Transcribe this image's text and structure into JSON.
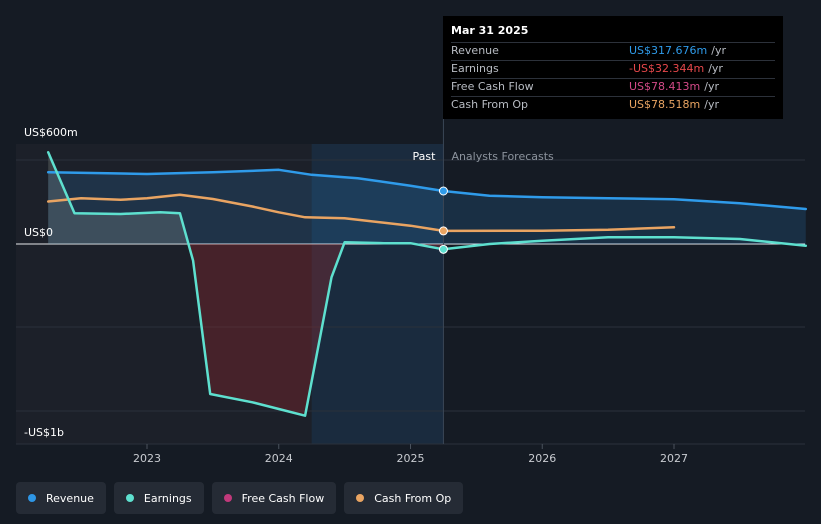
{
  "tooltip": {
    "date": "Mar 31 2025",
    "rows": [
      {
        "name": "Revenue",
        "value": "US$317.676m",
        "unit": "/yr",
        "color": "#2f9bea"
      },
      {
        "name": "Earnings",
        "value": "-US$32.344m",
        "unit": "/yr",
        "color": "#e8484b"
      },
      {
        "name": "Free Cash Flow",
        "value": "US$78.413m",
        "unit": "/yr",
        "color": "#d34a88"
      },
      {
        "name": "Cash From Op",
        "value": "US$78.518m",
        "unit": "/yr",
        "color": "#e9a462"
      }
    ]
  },
  "legend": [
    {
      "label": "Revenue",
      "color": "#2e96e6"
    },
    {
      "label": "Earnings",
      "color": "#5ee0cf"
    },
    {
      "label": "Free Cash Flow",
      "color": "#c1397b"
    },
    {
      "label": "Cash From Op",
      "color": "#e9a462"
    }
  ],
  "chart_data": {
    "type": "line",
    "y_axis_labels": {
      "top": "US$600m",
      "zero": "US$0",
      "bottom": "-US$1b"
    },
    "ylim": [
      -1000,
      600
    ],
    "x_ticks": [
      {
        "label": "2023",
        "x": 2023.0
      },
      {
        "label": "2024",
        "x": 2024.0
      },
      {
        "label": "2025",
        "x": 2025.0
      },
      {
        "label": "2026",
        "x": 2026.0
      },
      {
        "label": "2027",
        "x": 2027.0
      }
    ],
    "xlim": [
      2022.0,
      2028.0
    ],
    "divider_x": 2025.25,
    "past_label": "Past",
    "forecast_label": "Analysts Forecasts",
    "series": [
      {
        "name": "Revenue",
        "color": "#2f9bea",
        "fill": true,
        "points": [
          [
            2022.25,
            430
          ],
          [
            2022.7,
            425
          ],
          [
            2023.0,
            420
          ],
          [
            2023.5,
            430
          ],
          [
            2024.0,
            445
          ],
          [
            2024.25,
            415
          ],
          [
            2024.6,
            395
          ],
          [
            2025.0,
            350
          ],
          [
            2025.25,
            318
          ],
          [
            2025.6,
            290
          ],
          [
            2026.0,
            280
          ],
          [
            2026.5,
            275
          ],
          [
            2027.0,
            268
          ],
          [
            2027.5,
            245
          ],
          [
            2028.0,
            210
          ]
        ],
        "marker_x": 2025.25
      },
      {
        "name": "Cash From Op",
        "color": "#e9a462",
        "fill": false,
        "points": [
          [
            2022.25,
            255
          ],
          [
            2022.5,
            275
          ],
          [
            2022.8,
            265
          ],
          [
            2023.0,
            275
          ],
          [
            2023.25,
            295
          ],
          [
            2023.5,
            270
          ],
          [
            2023.8,
            225
          ],
          [
            2024.0,
            190
          ],
          [
            2024.2,
            160
          ],
          [
            2024.5,
            155
          ],
          [
            2025.0,
            110
          ],
          [
            2025.25,
            78.5
          ],
          [
            2026.0,
            80
          ],
          [
            2026.5,
            85
          ],
          [
            2027.0,
            100
          ]
        ],
        "marker_x": 2025.25
      },
      {
        "name": "Earnings",
        "color": "#5ee0cf",
        "fill": true,
        "points": [
          [
            2022.25,
            550
          ],
          [
            2022.45,
            185
          ],
          [
            2022.8,
            180
          ],
          [
            2023.1,
            190
          ],
          [
            2023.25,
            185
          ],
          [
            2023.35,
            -100
          ],
          [
            2023.48,
            -900
          ],
          [
            2023.8,
            -950
          ],
          [
            2024.0,
            -990
          ],
          [
            2024.2,
            -1030
          ],
          [
            2024.4,
            -200
          ],
          [
            2024.5,
            10
          ],
          [
            2024.8,
            5
          ],
          [
            2025.0,
            5
          ],
          [
            2025.25,
            -32
          ],
          [
            2025.6,
            0
          ],
          [
            2026.0,
            20
          ],
          [
            2026.5,
            40
          ],
          [
            2027.0,
            40
          ],
          [
            2027.5,
            30
          ],
          [
            2028.0,
            -10
          ]
        ],
        "marker_x": 2025.25
      }
    ]
  }
}
